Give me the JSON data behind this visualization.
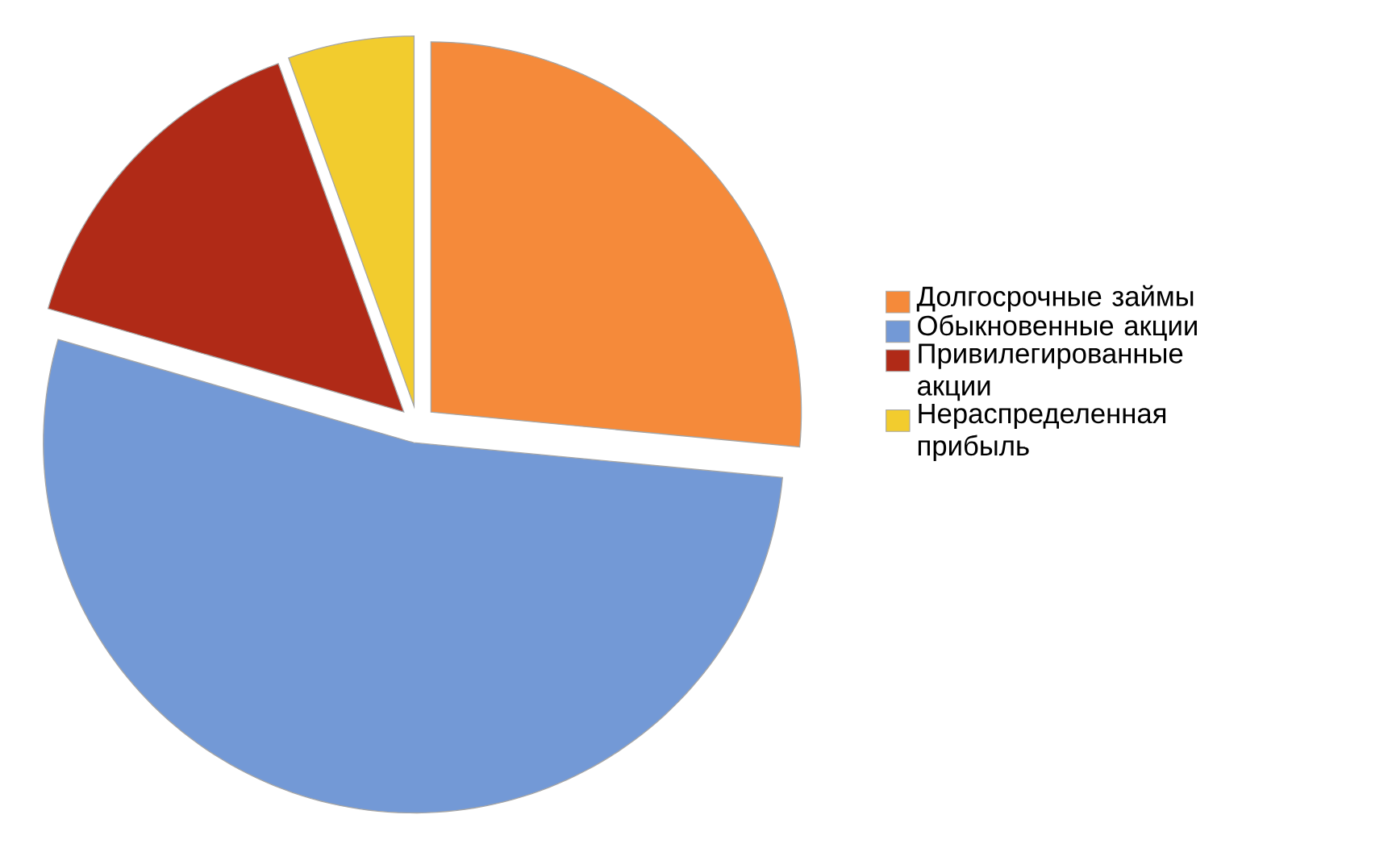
{
  "chart_data": {
    "type": "pie",
    "categories": [
      "Долгосрочные займы",
      "Обыкновенные акции",
      "Привилегированные акции",
      "Нераспределенная прибыль"
    ],
    "values": [
      26.5,
      53,
      15,
      5.5
    ],
    "colors": [
      "#f58a3a",
      "#7399d6",
      "#b02a17",
      "#f2cc2e"
    ],
    "legend": "right"
  }
}
